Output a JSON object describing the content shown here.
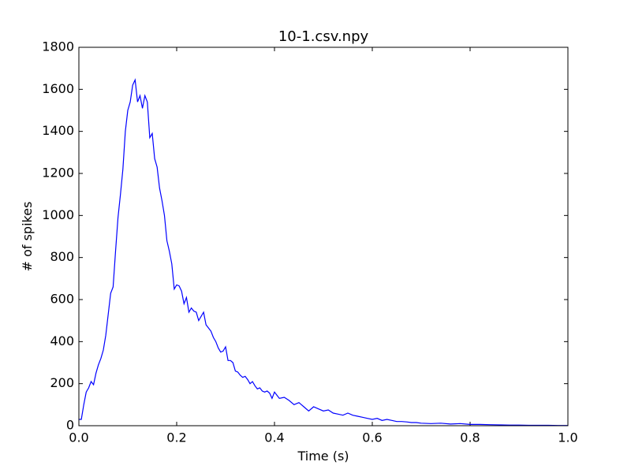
{
  "chart_data": {
    "type": "line",
    "title": "10-1.csv.npy",
    "xlabel": "Time (s)",
    "ylabel": "# of spikes",
    "xlim": [
      0,
      1
    ],
    "ylim": [
      0,
      1800
    ],
    "xticks": [
      {
        "value": 0,
        "label": "0.0"
      },
      {
        "value": 0.2,
        "label": "0.2"
      },
      {
        "value": 0.4,
        "label": "0.4"
      },
      {
        "value": 0.6,
        "label": "0.6"
      },
      {
        "value": 0.8,
        "label": "0.8"
      },
      {
        "value": 1,
        "label": "1.0"
      }
    ],
    "yticks": [
      0,
      200,
      400,
      600,
      800,
      1000,
      1200,
      1400,
      1600,
      1800
    ],
    "series": [
      {
        "color": "#0000ff",
        "x": [
          0,
          0.005,
          0.01,
          0.015,
          0.02,
          0.025,
          0.03,
          0.035,
          0.04,
          0.045,
          0.05,
          0.055,
          0.06,
          0.065,
          0.07,
          0.075,
          0.08,
          0.085,
          0.09,
          0.095,
          0.1,
          0.105,
          0.11,
          0.115,
          0.12,
          0.125,
          0.13,
          0.135,
          0.14,
          0.145,
          0.15,
          0.155,
          0.16,
          0.165,
          0.17,
          0.175,
          0.18,
          0.185,
          0.19,
          0.195,
          0.2,
          0.205,
          0.21,
          0.215,
          0.22,
          0.225,
          0.23,
          0.235,
          0.24,
          0.245,
          0.25,
          0.255,
          0.26,
          0.265,
          0.27,
          0.275,
          0.28,
          0.285,
          0.29,
          0.295,
          0.3,
          0.305,
          0.31,
          0.315,
          0.32,
          0.325,
          0.33,
          0.335,
          0.34,
          0.345,
          0.35,
          0.355,
          0.36,
          0.365,
          0.37,
          0.375,
          0.38,
          0.385,
          0.39,
          0.395,
          0.4,
          0.41,
          0.42,
          0.43,
          0.44,
          0.45,
          0.46,
          0.47,
          0.48,
          0.49,
          0.5,
          0.51,
          0.52,
          0.53,
          0.54,
          0.55,
          0.56,
          0.57,
          0.58,
          0.59,
          0.6,
          0.61,
          0.62,
          0.63,
          0.64,
          0.65,
          0.66,
          0.67,
          0.68,
          0.69,
          0.7,
          0.72,
          0.74,
          0.76,
          0.78,
          0.8,
          0.82,
          0.84,
          0.86,
          0.88,
          0.9,
          0.92,
          0.94,
          0.96,
          0.98,
          1
        ],
        "values": [
          30,
          30,
          100,
          160,
          180,
          210,
          195,
          250,
          290,
          320,
          360,
          430,
          530,
          630,
          660,
          830,
          990,
          1100,
          1220,
          1400,
          1500,
          1540,
          1620,
          1645,
          1540,
          1570,
          1510,
          1570,
          1540,
          1370,
          1390,
          1270,
          1230,
          1130,
          1070,
          1000,
          880,
          830,
          770,
          650,
          670,
          665,
          640,
          580,
          610,
          540,
          560,
          545,
          540,
          500,
          520,
          540,
          480,
          465,
          450,
          420,
          400,
          370,
          350,
          355,
          375,
          310,
          310,
          300,
          260,
          255,
          240,
          230,
          235,
          220,
          200,
          210,
          190,
          175,
          180,
          165,
          160,
          165,
          155,
          130,
          160,
          130,
          135,
          120,
          100,
          110,
          90,
          70,
          90,
          80,
          70,
          75,
          60,
          55,
          50,
          60,
          50,
          45,
          40,
          35,
          30,
          35,
          25,
          30,
          25,
          20,
          20,
          18,
          15,
          15,
          12,
          10,
          12,
          8,
          10,
          6,
          6,
          5,
          4,
          3,
          3,
          2,
          2,
          2,
          1,
          1
        ]
      }
    ]
  }
}
